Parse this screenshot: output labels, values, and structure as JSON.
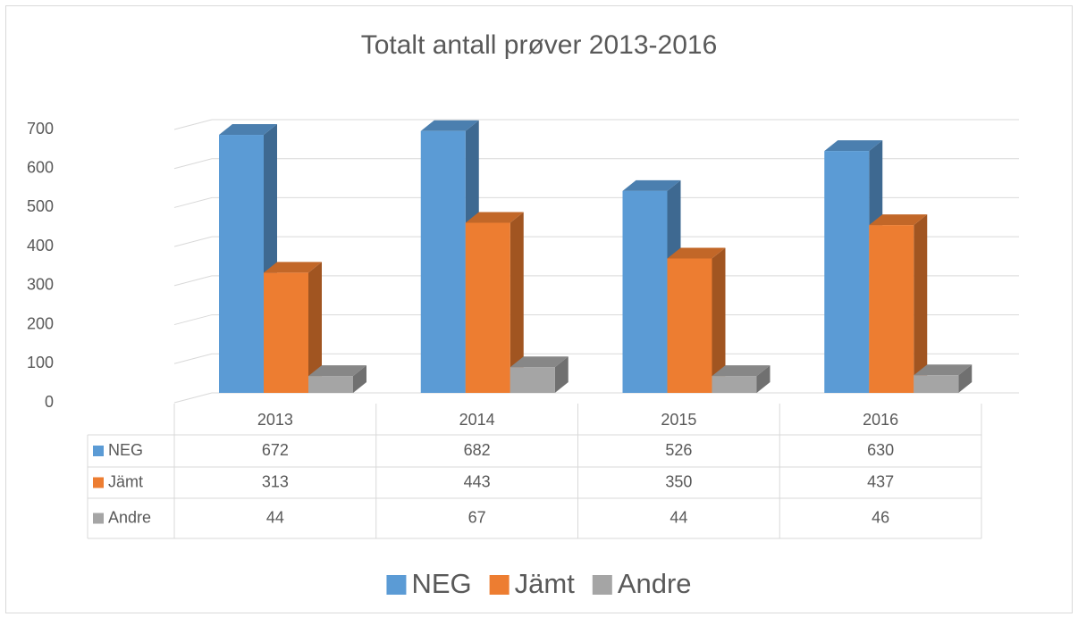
{
  "chart_data": {
    "type": "bar",
    "title": "Totalt antall prøver 2013-2016",
    "categories": [
      "2013",
      "2014",
      "2015",
      "2016"
    ],
    "series": [
      {
        "name": "NEG",
        "color": "#5b9bd5",
        "values": [
          672,
          682,
          526,
          630
        ]
      },
      {
        "name": "Jämt",
        "color": "#ed7d31",
        "values": [
          313,
          443,
          350,
          437
        ]
      },
      {
        "name": "Andre",
        "color": "#a5a5a5",
        "values": [
          44,
          67,
          44,
          46
        ]
      }
    ],
    "ylim": [
      0,
      700
    ],
    "yticks": [
      0,
      100,
      200,
      300,
      400,
      500,
      600,
      700
    ],
    "grid": true
  }
}
